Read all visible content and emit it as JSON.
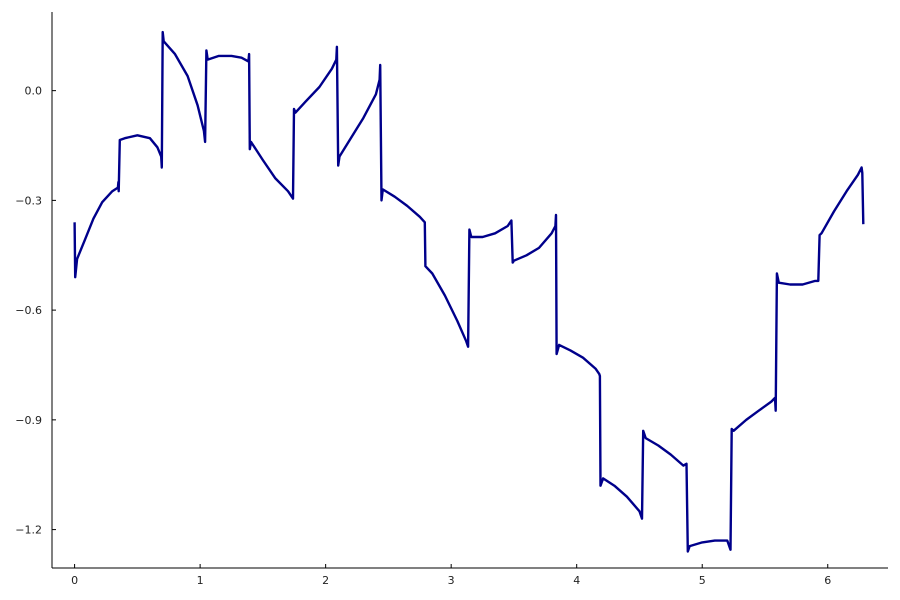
{
  "chart_data": {
    "type": "line",
    "title": "",
    "xlabel": "",
    "ylabel": "",
    "xlim": [
      -0.18,
      6.48
    ],
    "ylim": [
      -1.305,
      0.215
    ],
    "grid": false,
    "legend": "none",
    "x_ticks": [
      0,
      1,
      2,
      3,
      4,
      5,
      6
    ],
    "x_tick_labels": [
      "0",
      "1",
      "2",
      "3",
      "4",
      "5",
      "6"
    ],
    "y_ticks": [
      0.0,
      -0.3,
      -0.6,
      -0.9,
      -1.2
    ],
    "y_tick_labels": [
      "0.0",
      "−0.3",
      "−0.6",
      "−0.9",
      "−1.2"
    ],
    "series": [
      {
        "color": "#00008b",
        "points": [
          [
            0.0,
            -0.36
          ],
          [
            0.005,
            -0.51
          ],
          [
            0.02,
            -0.46
          ],
          [
            0.08,
            -0.41
          ],
          [
            0.15,
            -0.35
          ],
          [
            0.22,
            -0.305
          ],
          [
            0.3,
            -0.275
          ],
          [
            0.345,
            -0.265
          ],
          [
            0.349,
            -0.25
          ],
          [
            0.351,
            -0.275
          ],
          [
            0.36,
            -0.135
          ],
          [
            0.4,
            -0.13
          ],
          [
            0.5,
            -0.122
          ],
          [
            0.6,
            -0.13
          ],
          [
            0.66,
            -0.155
          ],
          [
            0.69,
            -0.18
          ],
          [
            0.695,
            -0.21
          ],
          [
            0.702,
            0.16
          ],
          [
            0.71,
            0.135
          ],
          [
            0.8,
            0.1
          ],
          [
            0.9,
            0.04
          ],
          [
            0.98,
            -0.04
          ],
          [
            1.03,
            -0.11
          ],
          [
            1.04,
            -0.14
          ],
          [
            1.05,
            0.11
          ],
          [
            1.06,
            0.085
          ],
          [
            1.15,
            0.095
          ],
          [
            1.25,
            0.095
          ],
          [
            1.33,
            0.09
          ],
          [
            1.385,
            0.08
          ],
          [
            1.39,
            0.1
          ],
          [
            1.396,
            -0.16
          ],
          [
            1.405,
            -0.14
          ],
          [
            1.5,
            -0.19
          ],
          [
            1.6,
            -0.24
          ],
          [
            1.7,
            -0.275
          ],
          [
            1.74,
            -0.295
          ],
          [
            1.748,
            -0.05
          ],
          [
            1.76,
            -0.06
          ],
          [
            1.84,
            -0.03
          ],
          [
            1.95,
            0.01
          ],
          [
            2.05,
            0.06
          ],
          [
            2.085,
            0.085
          ],
          [
            2.09,
            0.12
          ],
          [
            2.1,
            -0.205
          ],
          [
            2.11,
            -0.18
          ],
          [
            2.2,
            -0.13
          ],
          [
            2.3,
            -0.075
          ],
          [
            2.4,
            -0.01
          ],
          [
            2.43,
            0.03
          ],
          [
            2.435,
            0.07
          ],
          [
            2.445,
            -0.3
          ],
          [
            2.455,
            -0.27
          ],
          [
            2.55,
            -0.29
          ],
          [
            2.65,
            -0.315
          ],
          [
            2.75,
            -0.345
          ],
          [
            2.79,
            -0.36
          ],
          [
            2.795,
            -0.48
          ],
          [
            2.85,
            -0.5
          ],
          [
            2.95,
            -0.56
          ],
          [
            3.05,
            -0.63
          ],
          [
            3.12,
            -0.685
          ],
          [
            3.135,
            -0.7
          ],
          [
            3.145,
            -0.38
          ],
          [
            3.16,
            -0.4
          ],
          [
            3.25,
            -0.4
          ],
          [
            3.35,
            -0.39
          ],
          [
            3.45,
            -0.37
          ],
          [
            3.48,
            -0.355
          ],
          [
            3.49,
            -0.47
          ],
          [
            3.5,
            -0.465
          ],
          [
            3.6,
            -0.45
          ],
          [
            3.7,
            -0.43
          ],
          [
            3.8,
            -0.39
          ],
          [
            3.83,
            -0.37
          ],
          [
            3.835,
            -0.34
          ],
          [
            3.84,
            -0.72
          ],
          [
            3.86,
            -0.695
          ],
          [
            3.95,
            -0.71
          ],
          [
            4.05,
            -0.73
          ],
          [
            4.15,
            -0.76
          ],
          [
            4.18,
            -0.775
          ],
          [
            4.185,
            -0.78
          ],
          [
            4.19,
            -1.08
          ],
          [
            4.21,
            -1.06
          ],
          [
            4.3,
            -1.08
          ],
          [
            4.4,
            -1.11
          ],
          [
            4.5,
            -1.15
          ],
          [
            4.52,
            -1.17
          ],
          [
            4.53,
            -0.93
          ],
          [
            4.55,
            -0.95
          ],
          [
            4.65,
            -0.97
          ],
          [
            4.75,
            -0.995
          ],
          [
            4.85,
            -1.025
          ],
          [
            4.875,
            -1.02
          ],
          [
            4.885,
            -1.26
          ],
          [
            4.9,
            -1.245
          ],
          [
            5.0,
            -1.235
          ],
          [
            5.1,
            -1.23
          ],
          [
            5.2,
            -1.23
          ],
          [
            5.225,
            -1.255
          ],
          [
            5.235,
            -0.925
          ],
          [
            5.25,
            -0.93
          ],
          [
            5.35,
            -0.9
          ],
          [
            5.45,
            -0.875
          ],
          [
            5.55,
            -0.85
          ],
          [
            5.58,
            -0.84
          ],
          [
            5.585,
            -0.875
          ],
          [
            5.595,
            -0.5
          ],
          [
            5.61,
            -0.525
          ],
          [
            5.7,
            -0.53
          ],
          [
            5.8,
            -0.53
          ],
          [
            5.9,
            -0.52
          ],
          [
            5.925,
            -0.52
          ],
          [
            5.935,
            -0.395
          ],
          [
            5.95,
            -0.39
          ],
          [
            6.05,
            -0.33
          ],
          [
            6.15,
            -0.275
          ],
          [
            6.24,
            -0.23
          ],
          [
            6.27,
            -0.21
          ],
          [
            6.275,
            -0.225
          ],
          [
            6.283,
            -0.365
          ]
        ]
      }
    ]
  }
}
